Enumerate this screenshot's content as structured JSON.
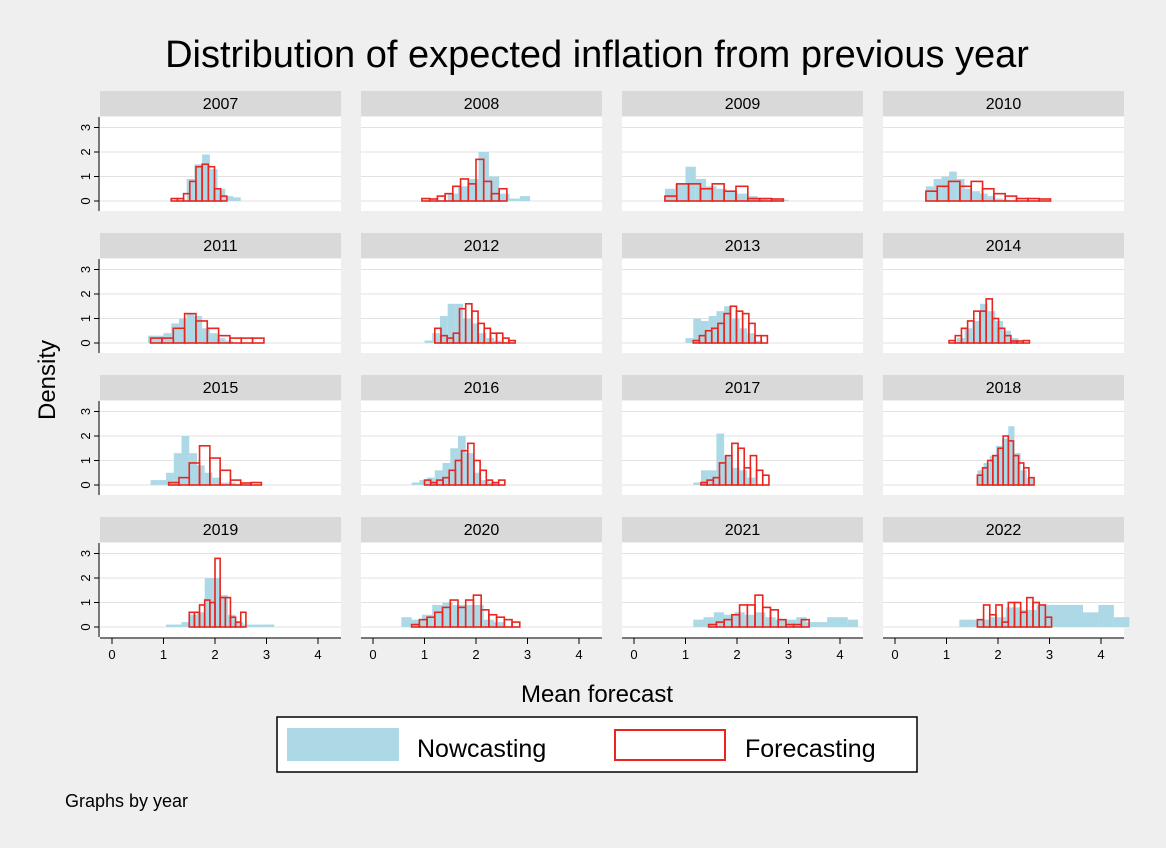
{
  "title": "Distribution of expected inflation from previous year",
  "xlabel": "Mean forecast",
  "ylabel": "Density",
  "note": "Graphs by year",
  "colors": {
    "nowcasting": "#add8e6",
    "forecasting": "#e8251f",
    "strip": "#d9d9d9",
    "background": "#efefef"
  },
  "chart_data": {
    "type": "bar",
    "subtype": "histogram-small-multiples",
    "xlim": [
      0,
      4
    ],
    "ylim": [
      0,
      3
    ],
    "x_ticks": [
      "0",
      "1",
      "2",
      "3",
      "4"
    ],
    "y_ticks": [
      "0",
      "1",
      "2",
      "3"
    ],
    "grid": true,
    "legend": {
      "position": "bottom",
      "entries": [
        "Nowcasting",
        "Forecasting"
      ]
    },
    "panels": [
      {
        "year": "2007",
        "nowcasting": {
          "start": 1.45,
          "width": 0.15,
          "values": [
            0.9,
            1.5,
            1.9,
            1.3,
            0.5,
            0.2,
            0.15
          ]
        },
        "forecasting": {
          "start": 1.15,
          "width": 0.12,
          "values": [
            0.1,
            0.1,
            0.3,
            0.8,
            1.4,
            1.5,
            1.4,
            0.5,
            0.2
          ]
        }
      },
      {
        "year": "2008",
        "nowcasting": {
          "start": 1.45,
          "width": 0.2,
          "values": [
            0.3,
            0.6,
            0.9,
            2.0,
            1.0,
            0.3,
            0.1,
            0.2
          ]
        },
        "forecasting": {
          "start": 0.95,
          "width": 0.15,
          "values": [
            0.1,
            0,
            0.2,
            0.3,
            0.6,
            0.9,
            0.7,
            1.7,
            0.8,
            0.3,
            0.5
          ]
        }
      },
      {
        "year": "2009",
        "nowcasting": {
          "start": 0.6,
          "width": 0.2,
          "values": [
            0.5,
            0.7,
            1.4,
            0.9,
            0.6,
            0.5,
            0.4,
            0.3,
            0.2,
            0.1,
            0.05,
            0.05
          ]
        },
        "forecasting": {
          "start": 0.6,
          "width": 0.23,
          "values": [
            0.2,
            0.7,
            0.7,
            0.5,
            0.7,
            0.4,
            0.6,
            0.1,
            0.1,
            0.02
          ]
        }
      },
      {
        "year": "2010",
        "nowcasting": {
          "start": 0.6,
          "width": 0.15,
          "values": [
            0.6,
            0.9,
            1.0,
            1.2,
            0.9,
            0.5,
            0.4,
            0.3,
            0.2,
            0.1,
            0.05
          ]
        },
        "forecasting": {
          "start": 0.6,
          "width": 0.22,
          "values": [
            0.4,
            0.6,
            0.8,
            0.6,
            0.8,
            0.5,
            0.3,
            0.2,
            0.1,
            0.1,
            0.05
          ]
        }
      },
      {
        "year": "2011",
        "nowcasting": {
          "start": 0.7,
          "width": 0.15,
          "values": [
            0.3,
            0.3,
            0.4,
            0.8,
            1.0,
            1.2,
            1.1,
            0.6,
            0.4,
            0.2,
            0.1
          ]
        },
        "forecasting": {
          "start": 0.75,
          "width": 0.22,
          "values": [
            0.2,
            0.2,
            0.6,
            1.2,
            0.9,
            0.6,
            0.3,
            0.2,
            0.2,
            0.2
          ]
        }
      },
      {
        "year": "2012",
        "nowcasting": {
          "start": 1.0,
          "width": 0.15,
          "values": [
            0.1,
            0.4,
            1.1,
            1.6,
            1.6,
            1.0,
            0.8,
            0.4,
            0.2,
            0.1,
            0.05
          ]
        },
        "forecasting": {
          "start": 1.2,
          "width": 0.12,
          "values": [
            0.6,
            0.3,
            0.2,
            0.4,
            1.4,
            1.6,
            1.3,
            0.8,
            0.6,
            0.4,
            0.4,
            0.2,
            0.1
          ]
        }
      },
      {
        "year": "2013",
        "nowcasting": {
          "start": 1.0,
          "width": 0.15,
          "values": [
            0.2,
            1.0,
            0.9,
            1.1,
            1.3,
            1.5,
            1.0,
            0.6,
            0.4,
            0.1
          ]
        },
        "forecasting": {
          "start": 1.15,
          "width": 0.12,
          "values": [
            0.1,
            0.3,
            0.5,
            0.6,
            0.8,
            1.2,
            1.5,
            1.3,
            1.2,
            0.8,
            0.3,
            0.3
          ]
        }
      },
      {
        "year": "2014",
        "nowcasting": {
          "start": 1.2,
          "width": 0.15,
          "values": [
            0.2,
            0.6,
            0.9,
            1.6,
            1.3,
            0.9,
            0.5,
            0.2
          ]
        },
        "forecasting": {
          "start": 1.05,
          "width": 0.12,
          "values": [
            0.1,
            0.3,
            0.6,
            0.9,
            1.3,
            1.3,
            1.8,
            1.0,
            0.6,
            0.3,
            0,
            0,
            0.1
          ]
        }
      },
      {
        "year": "2015",
        "nowcasting": {
          "start": 0.75,
          "width": 0.15,
          "values": [
            0.2,
            0.2,
            0.5,
            1.3,
            2.0,
            1.3,
            0.8,
            0.5,
            0.3,
            0.1,
            0.1,
            0.05
          ]
        },
        "forecasting": {
          "start": 1.1,
          "width": 0.2,
          "values": [
            0.1,
            0.3,
            0.9,
            1.6,
            1.1,
            0.6,
            0.2,
            0,
            0.1
          ]
        }
      },
      {
        "year": "2016",
        "nowcasting": {
          "start": 0.75,
          "width": 0.15,
          "values": [
            0.1,
            0.2,
            0.3,
            0.6,
            0.9,
            1.5,
            2.0,
            1.3,
            0.5,
            0.2,
            0.1
          ]
        },
        "forecasting": {
          "start": 1.0,
          "width": 0.12,
          "values": [
            0.2,
            0.1,
            0.2,
            0.3,
            0.6,
            1.0,
            1.4,
            1.7,
            1.0,
            0.6,
            0.2,
            0.1,
            0.2
          ]
        }
      },
      {
        "year": "2017",
        "nowcasting": {
          "start": 1.15,
          "width": 0.15,
          "values": [
            0.1,
            0.6,
            0.6,
            2.1,
            1.2,
            0.7,
            0.6,
            0.3
          ]
        },
        "forecasting": {
          "start": 1.3,
          "width": 0.12,
          "values": [
            0.1,
            0.2,
            0.3,
            0.9,
            1.2,
            1.7,
            1.5,
            0.7,
            1.2,
            0.6,
            0.4
          ]
        }
      },
      {
        "year": "2018",
        "nowcasting": {
          "start": 1.6,
          "width": 0.12,
          "values": [
            0.6,
            0.9,
            1.2,
            1.6,
            1.9,
            2.4,
            1.3,
            0.6,
            0.3
          ]
        },
        "forecasting": {
          "start": 1.6,
          "width": 0.1,
          "values": [
            0.4,
            0.7,
            1.0,
            1.2,
            1.5,
            2.0,
            1.8,
            1.2,
            0.9,
            0.7,
            0.3
          ]
        }
      },
      {
        "year": "2019",
        "nowcasting": {
          "start": 1.05,
          "width": 0.15,
          "values": [
            0.1,
            0.1,
            0.2,
            0.5,
            0.6,
            2.0,
            2.0,
            1.3,
            0.5,
            0.2,
            0.1,
            0.1,
            0.1,
            0.1
          ]
        },
        "forecasting": {
          "start": 1.5,
          "width": 0.1,
          "values": [
            0.6,
            0.6,
            0.9,
            1.1,
            1.0,
            2.8,
            1.2,
            1.2,
            0.4,
            0.2,
            0.6
          ]
        }
      },
      {
        "year": "2020",
        "nowcasting": {
          "start": 0.55,
          "width": 0.2,
          "values": [
            0.4,
            0.3,
            0.5,
            0.9,
            1.0,
            0.9,
            0.9,
            0.9,
            0.3,
            0.2
          ]
        },
        "forecasting": {
          "start": 0.75,
          "width": 0.15,
          "values": [
            0.1,
            0.3,
            0.4,
            0.6,
            0.8,
            1.1,
            0.8,
            1.1,
            1.3,
            0.7,
            0.5,
            0.4,
            0.3,
            0.2
          ]
        }
      },
      {
        "year": "2021",
        "nowcasting": {
          "start": 1.15,
          "width": 0.2,
          "values": [
            0.3,
            0.4,
            0.6,
            0.5,
            0.6,
            0.5,
            0.6,
            0.4,
            0.3,
            0.3,
            0.4,
            0.2,
            0.2,
            0.4,
            0.4,
            0.3
          ]
        },
        "forecasting": {
          "start": 1.45,
          "width": 0.15,
          "values": [
            0.1,
            0.2,
            0.3,
            0.5,
            0.9,
            0.9,
            1.3,
            0.8,
            0.7,
            0.3,
            0.1,
            0.1,
            0.3
          ]
        }
      },
      {
        "year": "2022",
        "nowcasting": {
          "start": 1.25,
          "width": 0.3,
          "values": [
            0.3,
            0.3,
            0.4,
            0.8,
            0.7,
            0.9,
            0.9,
            0.9,
            0.6,
            0.9,
            0.4
          ]
        },
        "forecasting": {
          "start": 1.6,
          "width": 0.12,
          "values": [
            0.3,
            0.9,
            0.5,
            0.9,
            0.2,
            1.0,
            1.0,
            0.6,
            1.2,
            1.0,
            0.9,
            0.4
          ]
        }
      }
    ]
  }
}
